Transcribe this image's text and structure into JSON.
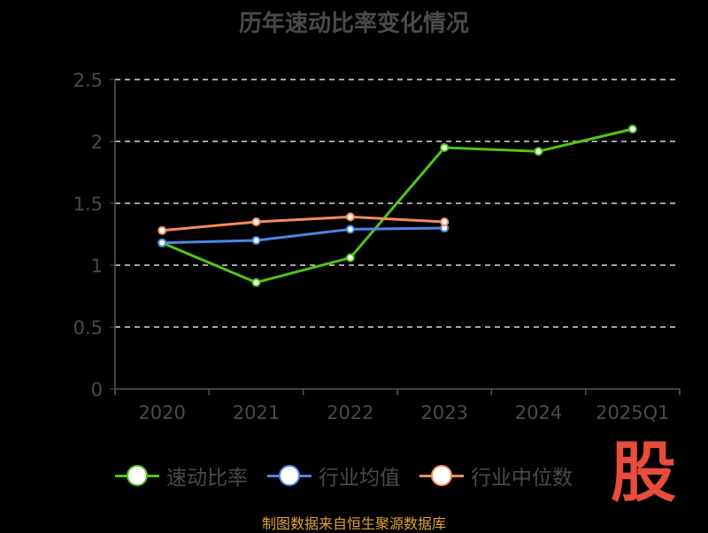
{
  "title": "历年速动比率变化情况",
  "footer": "制图数据来自恒生聚源数据库",
  "logo_text": "股",
  "chart_data": {
    "type": "line",
    "title": "历年速动比率变化情况",
    "categories": [
      "2020",
      "2021",
      "2022",
      "2023",
      "2024",
      "2025Q1"
    ],
    "ylim": [
      0,
      2.5
    ],
    "yticks": [
      0,
      0.5,
      1,
      1.5,
      2,
      2.5
    ],
    "ytick_labels": [
      "0",
      "0.5",
      "1",
      "1.5",
      "2",
      "2.5"
    ],
    "grid": true,
    "legend_position": "bottom",
    "series": [
      {
        "name": "速动比率",
        "color": "#52c41a",
        "values": [
          1.18,
          0.86,
          1.06,
          1.95,
          1.92,
          2.1
        ]
      },
      {
        "name": "行业均值",
        "color": "#4a88e8",
        "values": [
          1.18,
          1.2,
          1.29,
          1.3,
          null,
          null
        ]
      },
      {
        "name": "行业中位数",
        "color": "#f48c5c",
        "values": [
          1.28,
          1.35,
          1.39,
          1.35,
          null,
          null
        ]
      }
    ]
  }
}
